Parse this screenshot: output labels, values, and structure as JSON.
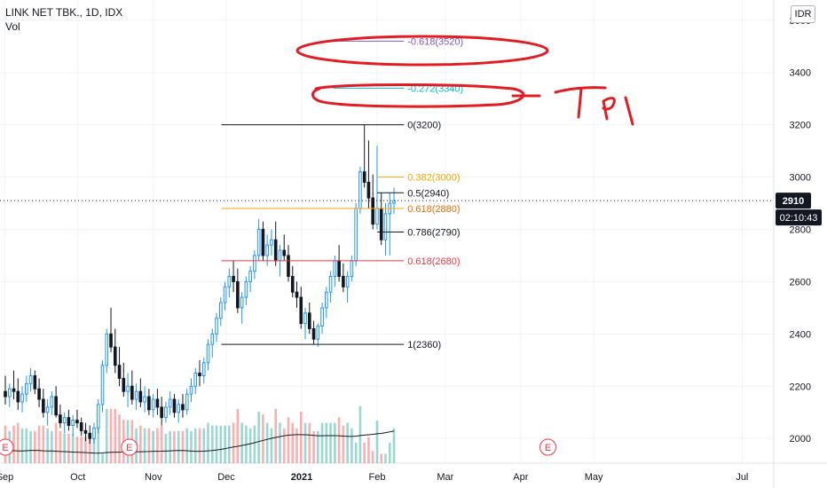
{
  "header": {
    "title": "LINK NET TBK., 1D, IDX",
    "vol_label": "Vol"
  },
  "currency_button": "IDR",
  "colors": {
    "up": "#26a69a",
    "down": "#131722",
    "hollow_up": "#2196f3",
    "red_ink": "#e31b23"
  },
  "chart_data": {
    "type": "candlestick",
    "y_axis": {
      "ticks": [
        2000,
        2200,
        2400,
        2600,
        2800,
        3000,
        3200,
        3400,
        3600
      ],
      "range": [
        1960,
        3640
      ],
      "side": "right"
    },
    "x_axis": {
      "labels": [
        "Sep",
        "Oct",
        "Nov",
        "Dec",
        "2021",
        "Feb",
        "Mar",
        "Apr",
        "May",
        "Jul"
      ],
      "label_dates": [
        "2020-09-01",
        "2020-10-01",
        "2020-11-01",
        "2020-12-01",
        "2021-01-01",
        "2021-02-01",
        "2021-03-01",
        "2021-04-01",
        "2021-05-01",
        "2021-07-01"
      ],
      "range": [
        "2020-08-30",
        "2021-07-14"
      ]
    },
    "last_price": {
      "value": 2910,
      "label": "2910",
      "countdown": "02:10:43"
    },
    "fib_levels": [
      {
        "label": "-0.618(3520)",
        "value": 3520,
        "color": "#7e57c2",
        "from": "2021-01-14",
        "to": "2021-02-12"
      },
      {
        "label": "-0.272(3340)",
        "value": 3340,
        "color": "#00bcd4",
        "from": "2021-01-14",
        "to": "2021-02-12"
      },
      {
        "label": "0(3200)",
        "value": 3200,
        "color": "#131722",
        "from": "2020-11-29",
        "to": "2021-02-12",
        "text_color": "#131722"
      },
      {
        "label": "0.382(3000)",
        "value": 3000,
        "color": "#f7a600",
        "from": "2021-02-01",
        "to": "2021-02-12"
      },
      {
        "label": "0.5(2940)",
        "value": 2940,
        "color": "#131722",
        "from": "2021-02-01",
        "to": "2021-02-12"
      },
      {
        "label": "0.618(2880)",
        "value": 2880,
        "color": "#f7a600",
        "from": "2020-11-29",
        "to": "2021-02-12",
        "text_color": "#ef6c00"
      },
      {
        "label": "0.786(2790)",
        "value": 2790,
        "color": "#131722",
        "from": "2021-02-01",
        "to": "2021-02-12"
      },
      {
        "label": "0.618(2680)",
        "value": 2680,
        "color": "#f23645",
        "from": "2020-11-29",
        "to": "2021-02-12",
        "text_color": "#f23645"
      },
      {
        "label": "1(2360)",
        "value": 2360,
        "color": "#131722",
        "from": "2020-11-29",
        "to": "2021-02-12"
      }
    ],
    "events": [
      {
        "date": "2020-08-30",
        "label": "E"
      },
      {
        "date": "2020-10-20",
        "label": "E"
      },
      {
        "date": "2021-04-10",
        "label": "E"
      }
    ],
    "annotations": [
      {
        "type": "handwriting",
        "text": "TP1",
        "color": "#e31b23"
      },
      {
        "type": "ellipse",
        "around": "-0.618(3520)"
      },
      {
        "type": "ellipse",
        "around": "-0.272(3340)"
      }
    ],
    "candles": [
      [
        2180,
        2240,
        2130,
        2160
      ],
      [
        2160,
        2210,
        2120,
        2190
      ],
      [
        2190,
        2260,
        2150,
        2180
      ],
      [
        2180,
        2230,
        2110,
        2140
      ],
      [
        2140,
        2200,
        2100,
        2170
      ],
      [
        2170,
        2240,
        2140,
        2210
      ],
      [
        2210,
        2270,
        2180,
        2240
      ],
      [
        2240,
        2260,
        2170,
        2190
      ],
      [
        2190,
        2230,
        2120,
        2150
      ],
      [
        2150,
        2190,
        2080,
        2100
      ],
      [
        2100,
        2150,
        2050,
        2120
      ],
      [
        2120,
        2180,
        2090,
        2160
      ],
      [
        2160,
        2200,
        2080,
        2090
      ],
      [
        2090,
        2130,
        2040,
        2060
      ],
      [
        2060,
        2100,
        2020,
        2080
      ],
      [
        2080,
        2110,
        2030,
        2050
      ],
      [
        2050,
        2090,
        2010,
        2070
      ],
      [
        2070,
        2110,
        2040,
        2060
      ],
      [
        2060,
        2080,
        2010,
        2030
      ],
      [
        2030,
        2060,
        1990,
        2020
      ],
      [
        2020,
        2050,
        1980,
        2000
      ],
      [
        2000,
        2060,
        1980,
        2040
      ],
      [
        2040,
        2150,
        2020,
        2130
      ],
      [
        2130,
        2300,
        2100,
        2280
      ],
      [
        2280,
        2420,
        2250,
        2400
      ],
      [
        2400,
        2500,
        2330,
        2350
      ],
      [
        2350,
        2420,
        2250,
        2280
      ],
      [
        2280,
        2350,
        2200,
        2230
      ],
      [
        2230,
        2290,
        2160,
        2180
      ],
      [
        2180,
        2250,
        2120,
        2200
      ],
      [
        2200,
        2260,
        2130,
        2150
      ],
      [
        2150,
        2210,
        2110,
        2180
      ],
      [
        2180,
        2230,
        2120,
        2140
      ],
      [
        2140,
        2200,
        2100,
        2160
      ],
      [
        2160,
        2190,
        2090,
        2110
      ],
      [
        2110,
        2170,
        2080,
        2150
      ],
      [
        2150,
        2190,
        2090,
        2120
      ],
      [
        2120,
        2160,
        2050,
        2080
      ],
      [
        2080,
        2140,
        2060,
        2120
      ],
      [
        2120,
        2180,
        2090,
        2150
      ],
      [
        2150,
        2170,
        2080,
        2100
      ],
      [
        2100,
        2150,
        2060,
        2130
      ],
      [
        2130,
        2170,
        2080,
        2110
      ],
      [
        2110,
        2190,
        2090,
        2170
      ],
      [
        2170,
        2230,
        2140,
        2200
      ],
      [
        2200,
        2270,
        2170,
        2250
      ],
      [
        2250,
        2300,
        2200,
        2240
      ],
      [
        2240,
        2310,
        2210,
        2290
      ],
      [
        2290,
        2380,
        2260,
        2360
      ],
      [
        2360,
        2420,
        2310,
        2400
      ],
      [
        2400,
        2480,
        2370,
        2460
      ],
      [
        2460,
        2540,
        2430,
        2520
      ],
      [
        2520,
        2600,
        2490,
        2580
      ],
      [
        2580,
        2650,
        2540,
        2620
      ],
      [
        2620,
        2680,
        2560,
        2600
      ],
      [
        2600,
        2650,
        2480,
        2500
      ],
      [
        2500,
        2560,
        2440,
        2540
      ],
      [
        2540,
        2620,
        2510,
        2600
      ],
      [
        2600,
        2660,
        2560,
        2640
      ],
      [
        2640,
        2720,
        2610,
        2700
      ],
      [
        2700,
        2840,
        2680,
        2800
      ],
      [
        2800,
        2830,
        2680,
        2700
      ],
      [
        2700,
        2780,
        2660,
        2740
      ],
      [
        2740,
        2800,
        2700,
        2760
      ],
      [
        2760,
        2830,
        2660,
        2680
      ],
      [
        2680,
        2740,
        2620,
        2720
      ],
      [
        2720,
        2780,
        2680,
        2700
      ],
      [
        2700,
        2740,
        2600,
        2620
      ],
      [
        2620,
        2660,
        2540,
        2560
      ],
      [
        2560,
        2600,
        2500,
        2540
      ],
      [
        2540,
        2580,
        2420,
        2440
      ],
      [
        2440,
        2500,
        2380,
        2480
      ],
      [
        2480,
        2520,
        2400,
        2420
      ],
      [
        2420,
        2450,
        2360,
        2380
      ],
      [
        2380,
        2440,
        2350,
        2430
      ],
      [
        2430,
        2520,
        2400,
        2500
      ],
      [
        2500,
        2580,
        2460,
        2560
      ],
      [
        2560,
        2640,
        2520,
        2620
      ],
      [
        2620,
        2700,
        2580,
        2680
      ],
      [
        2680,
        2740,
        2600,
        2620
      ],
      [
        2620,
        2670,
        2560,
        2580
      ],
      [
        2580,
        2640,
        2520,
        2620
      ],
      [
        2620,
        2700,
        2600,
        2680
      ],
      [
        2680,
        2900,
        2660,
        2880
      ],
      [
        2880,
        3040,
        2860,
        3020
      ],
      [
        3020,
        3200,
        2960,
        2980
      ],
      [
        2980,
        3140,
        2880,
        2920
      ],
      [
        2920,
        3010,
        2800,
        2820
      ],
      [
        2820,
        3120,
        2800,
        2880
      ],
      [
        2880,
        2940,
        2740,
        2760
      ],
      [
        2760,
        2900,
        2700,
        2860
      ],
      [
        2860,
        2940,
        2700,
        2900
      ],
      [
        2900,
        2960,
        2860,
        2910
      ]
    ]
  }
}
